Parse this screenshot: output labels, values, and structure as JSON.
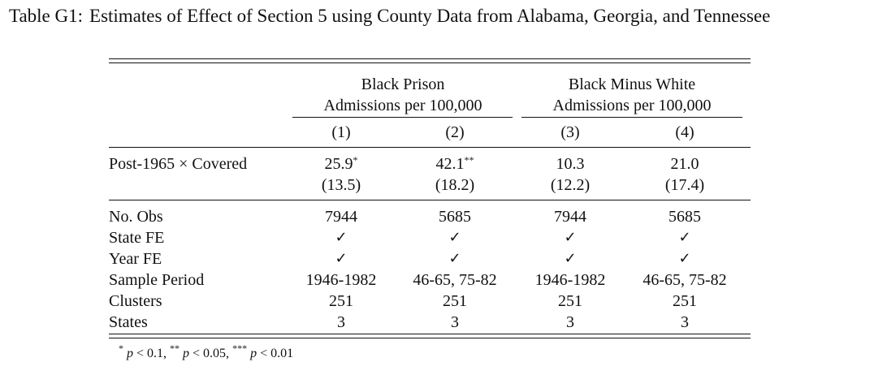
{
  "caption": {
    "label": "Table G1:",
    "text": "Estimates of Effect of Section 5 using County Data from Alabama, Georgia, and Tennessee"
  },
  "header": {
    "groups": [
      {
        "line1": "Black Prison",
        "line2": "Admissions per 100,000"
      },
      {
        "line1": "Black Minus White",
        "line2": "Admissions per 100,000"
      }
    ],
    "columns": [
      "(1)",
      "(2)",
      "(3)",
      "(4)"
    ]
  },
  "main_row": {
    "label": "Post-1965 × Covered",
    "estimates": [
      "25.9",
      "42.1",
      "10.3",
      "21.0"
    ],
    "stars": [
      "*",
      "**",
      "",
      ""
    ],
    "std_errors": [
      "(13.5)",
      "(18.2)",
      "(12.2)",
      "(17.4)"
    ]
  },
  "stats_rows": [
    {
      "label": "No. Obs",
      "values": [
        "7944",
        "5685",
        "7944",
        "5685"
      ]
    },
    {
      "label": "State FE",
      "values": [
        "✓",
        "✓",
        "✓",
        "✓"
      ]
    },
    {
      "label": "Year FE",
      "values": [
        "✓",
        "✓",
        "✓",
        "✓"
      ]
    },
    {
      "label": "Sample Period",
      "values": [
        "1946-1982",
        "46-65, 75-82",
        "1946-1982",
        "46-65, 75-82"
      ]
    },
    {
      "label": "Clusters",
      "values": [
        "251",
        "251",
        "251",
        "251"
      ]
    },
    {
      "label": "States",
      "values": [
        "3",
        "3",
        "3",
        "3"
      ]
    }
  ],
  "note": {
    "s1": "*",
    "t1": "p",
    "v1": " < 0.1, ",
    "s2": "**",
    "t2": "p",
    "v2": " < 0.05, ",
    "s3": "***",
    "t3": "p",
    "v3": " < 0.01"
  }
}
